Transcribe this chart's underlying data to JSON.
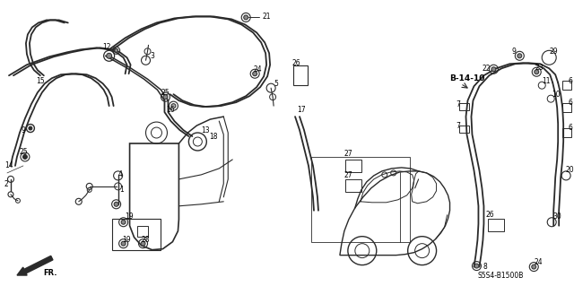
{
  "bg_color": "#ffffff",
  "line_color": "#2a2a2a",
  "text_color": "#000000",
  "figsize": [
    6.4,
    3.19
  ],
  "dpi": 100,
  "diagram_code": "S5S4-B1500B"
}
